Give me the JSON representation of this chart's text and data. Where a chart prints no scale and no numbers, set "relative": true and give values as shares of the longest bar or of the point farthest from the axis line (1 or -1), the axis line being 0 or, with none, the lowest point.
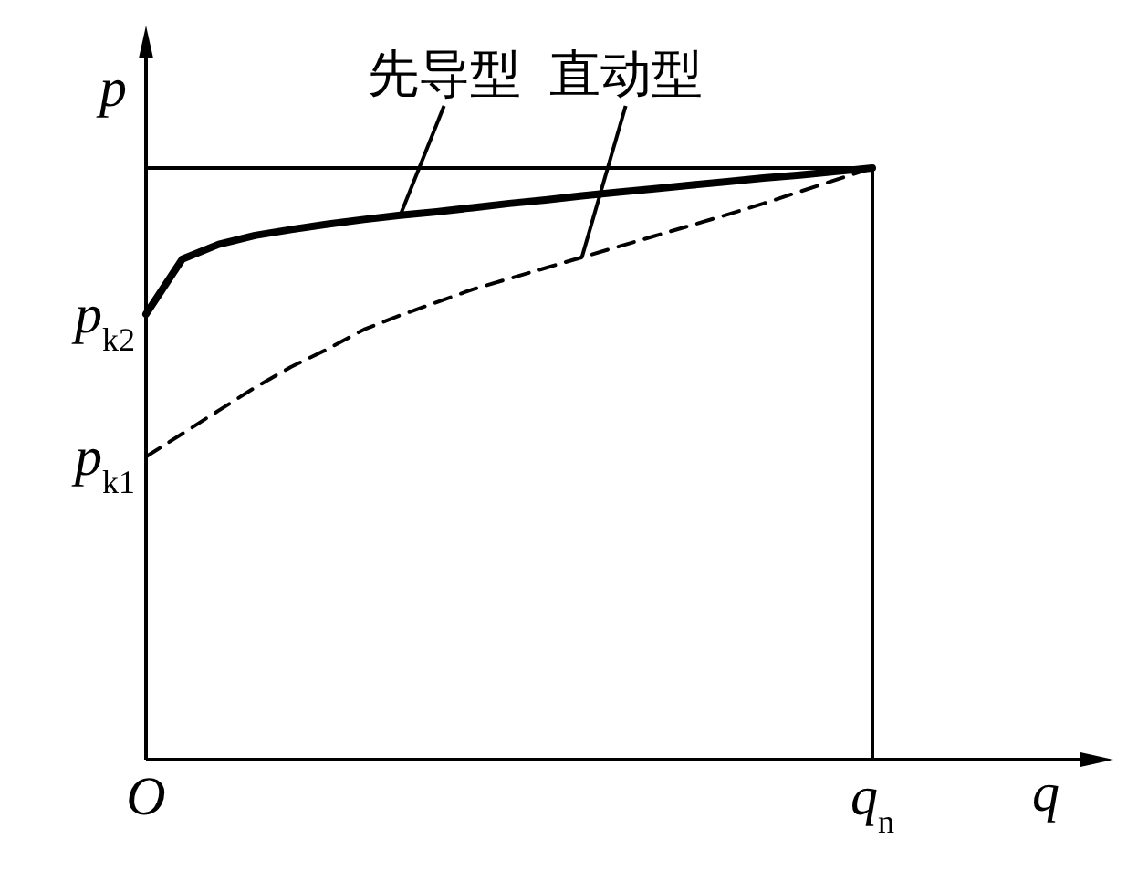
{
  "chart_data": {
    "type": "line",
    "relative": true,
    "xlabel": "q",
    "ylabel": "p",
    "marker": "none",
    "grid": false,
    "legend": false,
    "categories": [
      "O",
      null,
      null,
      null,
      null,
      null,
      null,
      null,
      null,
      null,
      null,
      null,
      null,
      null,
      null,
      null,
      null,
      null,
      null,
      null,
      "q$_{n}$"
    ],
    "series": [
      {
        "name": "先导型",
        "color": "#000000",
        "line_style": "solid",
        "values": [
          0.753,
          0.846,
          0.871,
          0.886,
          0.896,
          0.905,
          0.913,
          0.92,
          0.926,
          0.933,
          0.94,
          0.946,
          0.953,
          0.959,
          0.965,
          0.971,
          0.977,
          0.983,
          0.988,
          0.994,
          1
        ]
      },
      {
        "name": "直动型",
        "color": "#000000",
        "line_style": "dashed",
        "values": [
          0.512,
          0.551,
          0.59,
          0.629,
          0.664,
          0.694,
          0.727,
          0.751,
          0.773,
          0.795,
          0.813,
          0.831,
          0.849,
          0.867,
          0.885,
          0.903,
          0.921,
          0.94,
          0.96,
          0.98,
          1
        ]
      }
    ],
    "ref_lines": [
      {
        "axis": "y",
        "value": 1,
        "color": "#000000"
      },
      {
        "axis": "x",
        "value": "q$_{n}$",
        "color": "#000000"
      }
    ],
    "annotations": [
      "p$_{k2}$",
      "p$_{k1}$"
    ]
  }
}
